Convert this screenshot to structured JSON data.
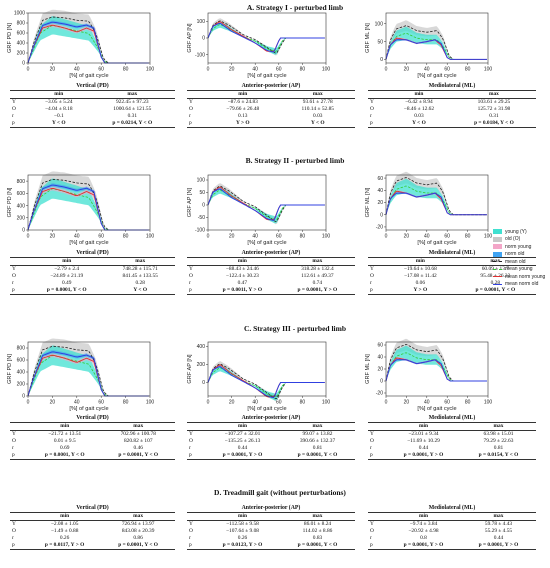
{
  "titles": {
    "a": "A. Strategy I - perturbed limb",
    "b": "B. Strategy II - perturbed limb",
    "c": "C. Strategy III - perturbed limb",
    "d": "D. Treadmill gait (without perturbations)"
  },
  "legend": [
    {
      "label": "young (Y)",
      "color": "#40e0d0",
      "kind": "fill"
    },
    {
      "label": "old (O)",
      "color": "#c8c8c8",
      "kind": "fill"
    },
    {
      "label": "norm young",
      "color": "#f3a6c8",
      "kind": "fill"
    },
    {
      "label": "norm old",
      "color": "#3fa3f2",
      "kind": "fill"
    },
    {
      "label": "mean old",
      "color": "#222222",
      "kind": "dash"
    },
    {
      "label": "mean young",
      "color": "#33cc33",
      "kind": "dash"
    },
    {
      "label": "mean norm young",
      "color": "#e03030",
      "kind": "line"
    },
    {
      "label": "mean norm old",
      "color": "#3040e0",
      "kind": "line"
    }
  ],
  "chart_data": [
    {
      "type": "line",
      "section": "A",
      "ylabel": "GRF PD [N]",
      "xlabel": "[%] of gait cycle",
      "xticks": [
        "0",
        "20",
        "40",
        "60",
        "80",
        "100"
      ],
      "yticks": [
        "0",
        "200",
        "400",
        "600",
        "800",
        "1000"
      ],
      "ylim": [
        0,
        1000
      ]
    },
    {
      "type": "line",
      "section": "A",
      "ylabel": "GRF AP [N]",
      "xlabel": "[%] of gait cycle",
      "xticks": [
        "0",
        "20",
        "40",
        "60",
        "80",
        "100"
      ],
      "yticks": [
        "-100",
        "0",
        "100"
      ],
      "ylim": [
        -150,
        150
      ]
    },
    {
      "type": "line",
      "section": "A",
      "ylabel": "GRF ML [N]",
      "xlabel": "[%] of gait cycle",
      "xticks": [
        "0",
        "20",
        "40",
        "60",
        "80",
        "100"
      ],
      "yticks": [
        "0",
        "50",
        "100"
      ],
      "ylim": [
        -10,
        130
      ]
    },
    {
      "type": "line",
      "section": "B",
      "ylabel": "GRF PD [N]",
      "xlabel": "[%] of gait cycle",
      "xticks": [
        "0",
        "20",
        "40",
        "60",
        "80",
        "100"
      ],
      "yticks": [
        "0",
        "200",
        "400",
        "600",
        "800"
      ],
      "ylim": [
        0,
        900
      ]
    },
    {
      "type": "line",
      "section": "B",
      "ylabel": "GRF AP [N]",
      "xlabel": "[%] of gait cycle",
      "xticks": [
        "0",
        "20",
        "40",
        "60",
        "80",
        "100"
      ],
      "yticks": [
        "-100",
        "-50",
        "0",
        "50",
        "100"
      ],
      "ylim": [
        -100,
        120
      ]
    },
    {
      "type": "line",
      "section": "B",
      "ylabel": "GRF ML [N]",
      "xlabel": "[%] of gait cycle",
      "xticks": [
        "0",
        "20",
        "40",
        "60",
        "80",
        "100"
      ],
      "yticks": [
        "-20",
        "0",
        "20",
        "40",
        "60"
      ],
      "ylim": [
        -25,
        65
      ]
    },
    {
      "type": "line",
      "section": "C",
      "ylabel": "GRF PD [N]",
      "xlabel": "[%] of gait cycle",
      "xticks": [
        "0",
        "20",
        "40",
        "60",
        "80",
        "100"
      ],
      "yticks": [
        "0",
        "200",
        "400",
        "600",
        "800"
      ],
      "ylim": [
        0,
        900
      ]
    },
    {
      "type": "line",
      "section": "C",
      "ylabel": "GRF AP [N]",
      "xlabel": "[%] of gait cycle",
      "xticks": [
        "0",
        "20",
        "40",
        "60",
        "80",
        "100"
      ],
      "yticks": [
        "0",
        "200",
        "400"
      ],
      "ylim": [
        -150,
        450
      ]
    },
    {
      "type": "line",
      "section": "C",
      "ylabel": "GRF ML [N]",
      "xlabel": "[%] of gait cycle",
      "xticks": [
        "0",
        "20",
        "40",
        "60",
        "80",
        "100"
      ],
      "yticks": [
        "-20",
        "0",
        "20",
        "40",
        "60"
      ],
      "ylim": [
        -25,
        65
      ]
    }
  ],
  "tables": [
    {
      "title": "Vertical (PD)",
      "cols": [
        "min",
        "max"
      ],
      "rows": [
        [
          "Y",
          "−3.05 ± 5.24",
          "922.45 ± 97.23"
        ],
        [
          "O",
          "−4.04 ± 8.18",
          "1000.64 ± 121.55"
        ],
        [
          "r",
          "−0.1",
          "0.31"
        ],
        [
          "p",
          "Y < O",
          "p = 0.0214, Y < O"
        ]
      ]
    },
    {
      "title": "Anterior-posterior (AP)",
      "cols": [
        "min",
        "max"
      ],
      "rows": [
        [
          "Y",
          "−87.6 ± 24.83",
          "93.61 ± 27.78"
        ],
        [
          "O",
          "−79.66 ± 26.48",
          "110.14 ± 52.85"
        ],
        [
          "r",
          "0.13",
          "0.03"
        ],
        [
          "p",
          "Y > O",
          "Y < O"
        ]
      ]
    },
    {
      "title": "Mediolateral (ML)",
      "cols": [
        "min",
        "max"
      ],
      "rows": [
        [
          "Y",
          "−6.42 ± 8.94",
          "103.61 ± 29.25"
        ],
        [
          "O",
          "−8.46 ± 12.62",
          "125.72 ± 31.98"
        ],
        [
          "r",
          "0.03",
          "0.31"
        ],
        [
          "p",
          "Y < O",
          "p = 0.0184, Y < O"
        ]
      ]
    },
    {
      "title": "Vertical (PD)",
      "cols": [
        "min",
        "max"
      ],
      "rows": [
        [
          "Y",
          "−2.79 ± 2.4",
          "748.28 ± 115.71"
        ],
        [
          "O",
          "−24.89 ± 21.19",
          "841.45 ± 133.55"
        ],
        [
          "r",
          "0.49",
          "0.28"
        ],
        [
          "p",
          "p = 0.0001, Y < O",
          "Y < O"
        ]
      ]
    },
    {
      "title": "Anterior-posterior (AP)",
      "cols": [
        "min",
        "max"
      ],
      "rows": [
        [
          "Y",
          "−88.43 ± 24.46",
          "318.28 ± 132.4"
        ],
        [
          "O",
          "−122.4 ± 30.23",
          "112.61 ± 49.37"
        ],
        [
          "r",
          "0.47",
          "0.74"
        ],
        [
          "p",
          "p = 0.0011, Y > O",
          "p = 0.0001, Y > O"
        ]
      ]
    },
    {
      "title": "Mediolateral (ML)",
      "cols": [
        "min",
        "max"
      ],
      "rows": [
        [
          "Y",
          "−19.64 ± 10.68",
          "60.09 ± 13.7"
        ],
        [
          "O",
          "−17.08 ± 11.42",
          "95.48 ± 26.33"
        ],
        [
          "r",
          "0.06",
          "0.28"
        ],
        [
          "p",
          "Y > O",
          "p = 0.0001, Y < O"
        ]
      ]
    },
    {
      "title": "Vertical (PD)",
      "cols": [
        "min",
        "max"
      ],
      "rows": [
        [
          "Y",
          "−21.72 ± 13.51",
          "702.96 ± 100.78"
        ],
        [
          "O",
          "0.01 ± 9.5",
          "820.82 ± 107"
        ],
        [
          "r",
          "0.69",
          "0.46"
        ],
        [
          "p",
          "p = 0.0001, Y < O",
          "p = 0.0001, Y < O"
        ]
      ]
    },
    {
      "title": "Anterior-posterior (AP)",
      "cols": [
        "min",
        "max"
      ],
      "rows": [
        [
          "Y",
          "−107.27 ± 32.01",
          "99.07 ± 13.82"
        ],
        [
          "O",
          "−135.25 ± 26.13",
          "390.66 ± 132.37"
        ],
        [
          "r",
          "0.44",
          "0.81"
        ],
        [
          "p",
          "p = 0.0001, Y > O",
          "p = 0.0001, Y < O"
        ]
      ]
    },
    {
      "title": "Mediolateral (ML)",
      "cols": [
        "min",
        "max"
      ],
      "rows": [
        [
          "Y",
          "−23.01 ± 9.34",
          "63.98 ± 15.01"
        ],
        [
          "O",
          "−11.69 ± 10.29",
          "79.29 ± 22.63"
        ],
        [
          "r",
          "0.44",
          "0.81"
        ],
        [
          "p",
          "p = 0.0001, Y > O",
          "p = 0.0154, Y < O"
        ]
      ]
    },
    {
      "title": "Vertical (PD)",
      "cols": [
        "min",
        "max"
      ],
      "rows": [
        [
          "Y",
          "−2.08 ± 1.05",
          "726.94 ± 13.97"
        ],
        [
          "O",
          "−1.49 ± 0.88",
          "843.08 ± 20.39"
        ],
        [
          "r",
          "0.26",
          "0.86"
        ],
        [
          "p",
          "p = 0.0117, Y > O",
          "p = 0.0001, Y < O"
        ]
      ]
    },
    {
      "title": "Anterior-posterior (AP)",
      "cols": [
        "min",
        "max"
      ],
      "rows": [
        [
          "Y",
          "−112.58 ± 9.58",
          "86.01 ± 8.24"
        ],
        [
          "O",
          "−107.64 ± 9.08",
          "114.02 ± 8.86"
        ],
        [
          "r",
          "0.26",
          "0.83"
        ],
        [
          "p",
          "p = 0.0123, Y > O",
          "p = 0.0001, Y < O"
        ]
      ]
    },
    {
      "title": "Mediolateral (ML)",
      "cols": [
        "min",
        "max"
      ],
      "rows": [
        [
          "Y",
          "−9.74 ± 3.84",
          "59.78 ± 4.43"
        ],
        [
          "O",
          "−20.92 ± 4.98",
          "55.29 ± 4.55"
        ],
        [
          "r",
          "0.8",
          "0.44"
        ],
        [
          "p",
          "p = 0.0001, Y > O",
          "p = 0.0001, Y > O"
        ]
      ]
    }
  ]
}
